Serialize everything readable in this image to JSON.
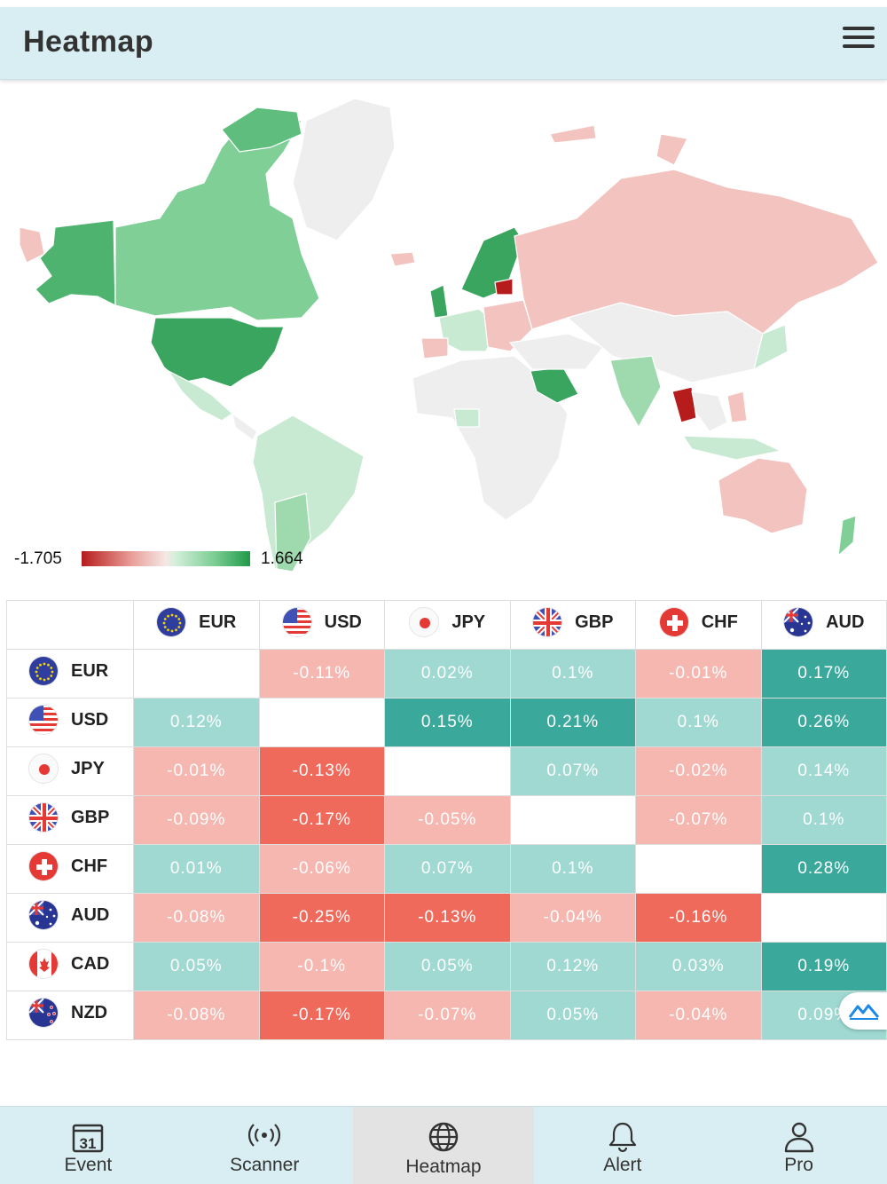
{
  "header": {
    "title": "Heatmap",
    "menu_icon": "hamburger-menu-icon"
  },
  "map": {
    "legend_min": "-1.705",
    "legend_max": "1.664",
    "colors": {
      "strong_positive": "#3aa55f",
      "positive": "#7fcf96",
      "light_positive": "#c8ead2",
      "neutral": "#eeeeee",
      "light_negative": "#f2c3bf",
      "strong_negative": "#b71c1c"
    }
  },
  "table": {
    "columns": [
      {
        "code": "EUR",
        "flag": "eu-flag-icon"
      },
      {
        "code": "USD",
        "flag": "us-flag-icon"
      },
      {
        "code": "JPY",
        "flag": "jp-flag-icon"
      },
      {
        "code": "GBP",
        "flag": "gb-flag-icon"
      },
      {
        "code": "CHF",
        "flag": "ch-flag-icon"
      },
      {
        "code": "AUD",
        "flag": "au-flag-icon"
      }
    ],
    "rows": [
      {
        "code": "EUR",
        "flag": "eu-flag-icon",
        "values": [
          "",
          "-0.11%",
          "0.02%",
          "0.1%",
          "-0.01%",
          "0.17%"
        ]
      },
      {
        "code": "USD",
        "flag": "us-flag-icon",
        "values": [
          "0.12%",
          "",
          "0.15%",
          "0.21%",
          "0.1%",
          "0.26%"
        ]
      },
      {
        "code": "JPY",
        "flag": "jp-flag-icon",
        "values": [
          "-0.01%",
          "-0.13%",
          "",
          "0.07%",
          "-0.02%",
          "0.14%"
        ]
      },
      {
        "code": "GBP",
        "flag": "gb-flag-icon",
        "values": [
          "-0.09%",
          "-0.17%",
          "-0.05%",
          "",
          "-0.07%",
          "0.1%"
        ]
      },
      {
        "code": "CHF",
        "flag": "ch-flag-icon",
        "values": [
          "0.01%",
          "-0.06%",
          "0.07%",
          "0.1%",
          "",
          "0.28%"
        ]
      },
      {
        "code": "AUD",
        "flag": "au-flag-icon",
        "values": [
          "-0.08%",
          "-0.25%",
          "-0.13%",
          "-0.04%",
          "-0.16%",
          ""
        ]
      },
      {
        "code": "CAD",
        "flag": "ca-flag-icon",
        "values": [
          "0.05%",
          "-0.1%",
          "0.05%",
          "0.12%",
          "0.03%",
          "0.19%"
        ]
      },
      {
        "code": "NZD",
        "flag": "nz-flag-icon",
        "values": [
          "-0.08%",
          "-0.17%",
          "-0.07%",
          "0.05%",
          "-0.04%",
          "0.09%"
        ]
      }
    ]
  },
  "floating_button": {
    "icon": "mountain-chart-icon"
  },
  "bottom_nav": {
    "items": [
      {
        "label": "Event",
        "icon": "calendar-icon"
      },
      {
        "label": "Scanner",
        "icon": "broadcast-icon"
      },
      {
        "label": "Heatmap",
        "icon": "globe-icon"
      },
      {
        "label": "Alert",
        "icon": "bell-icon"
      },
      {
        "label": "Pro",
        "icon": "user-icon"
      }
    ],
    "active": "Heatmap"
  }
}
